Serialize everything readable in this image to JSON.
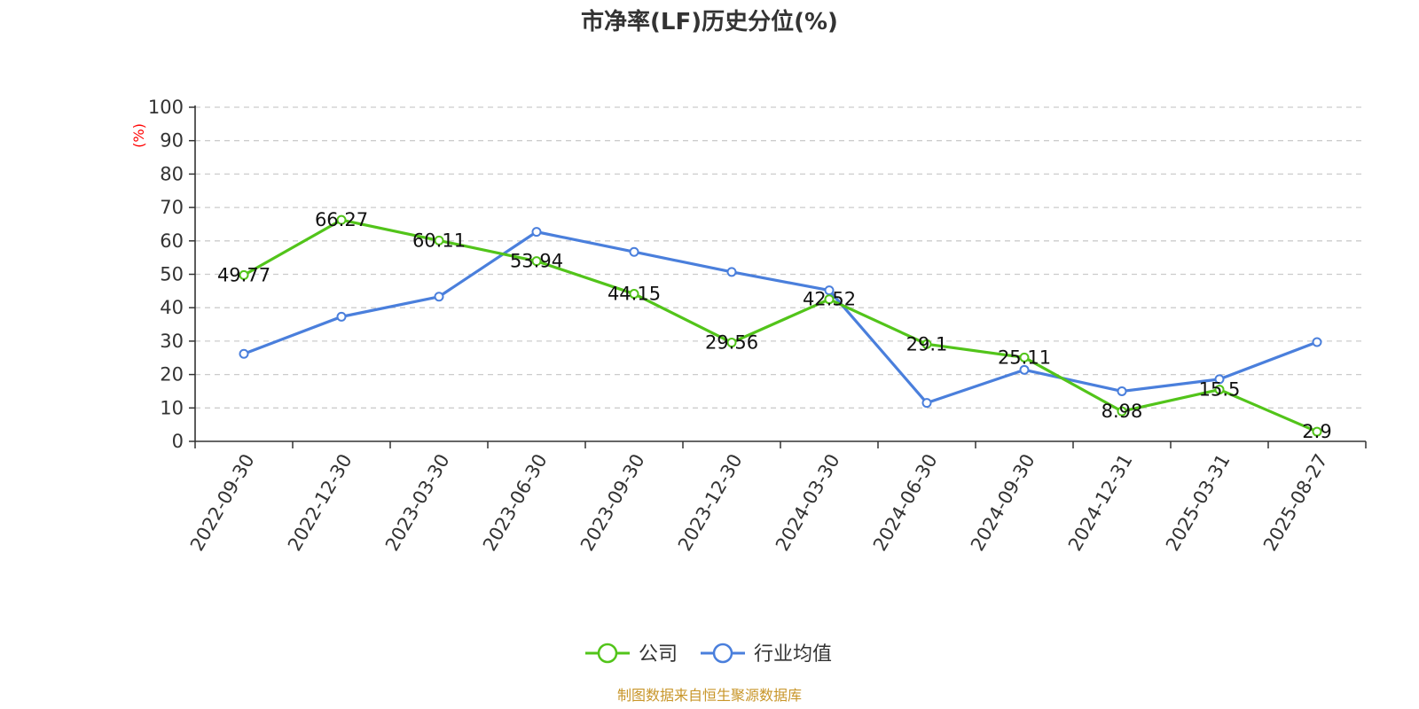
{
  "chart_data": {
    "type": "line",
    "title": "市净率(LF)历史分位(%)",
    "y_unit": "(%)",
    "categories": [
      "2022-09-30",
      "2022-12-30",
      "2023-03-30",
      "2023-06-30",
      "2023-09-30",
      "2023-12-30",
      "2024-03-30",
      "2024-06-30",
      "2024-09-30",
      "2024-12-31",
      "2025-03-31",
      "2025-08-27"
    ],
    "ylim": [
      0,
      100
    ],
    "yticks": [
      0,
      10,
      20,
      30,
      40,
      50,
      60,
      70,
      80,
      90,
      100
    ],
    "grid": true,
    "legend_position": "bottom",
    "series": [
      {
        "name": "公司",
        "color": "#52c41a",
        "values": [
          49.77,
          66.27,
          60.11,
          53.94,
          44.15,
          29.56,
          42.52,
          29.1,
          25.11,
          8.98,
          15.5,
          2.9
        ],
        "labels": [
          "49.77",
          "66.27",
          "60.11",
          "53.94",
          "44.15",
          "29.56",
          "42.52",
          "29.1",
          "25.11",
          "8.98",
          "15.5",
          "2.9"
        ]
      },
      {
        "name": "行业均值",
        "color": "#4a7fdc",
        "values": [
          26.2,
          37.3,
          43.3,
          62.7,
          56.7,
          50.7,
          45.2,
          11.5,
          21.4,
          15.0,
          18.6,
          29.7
        ]
      }
    ],
    "unit_color": "#ff0000"
  },
  "source": {
    "text": "制图数据来自恒生聚源数据库",
    "color": "#c8962a"
  }
}
